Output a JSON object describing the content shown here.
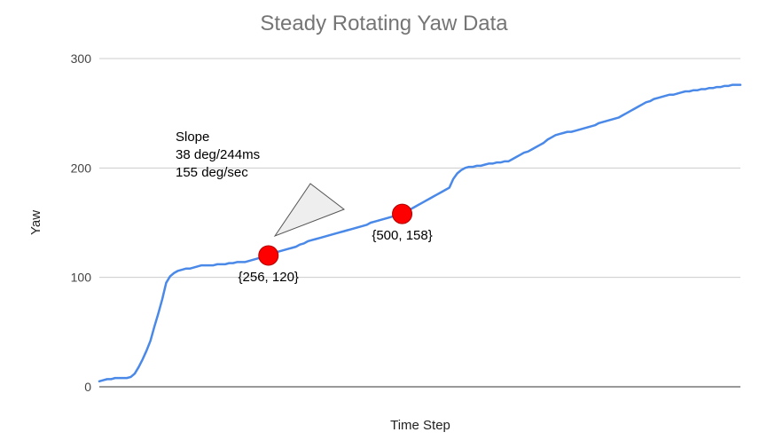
{
  "chart_data": {
    "type": "line",
    "title": "Steady Rotating Yaw Data",
    "xlabel": "Time Step",
    "ylabel": "Yaw",
    "ylim": [
      0,
      300
    ],
    "yticks": [
      0,
      100,
      200,
      300
    ],
    "grid": true,
    "legend": "none",
    "line_color": "#4a89e8",
    "marker_color": "#ff0000",
    "series": [
      {
        "values": [
          5,
          6,
          7,
          7,
          8,
          8,
          8,
          8,
          9,
          12,
          18,
          25,
          33,
          42,
          55,
          67,
          80,
          95,
          101,
          104,
          106,
          107,
          108,
          108,
          109,
          110,
          111,
          111,
          111,
          111,
          112,
          112,
          112,
          113,
          113,
          114,
          114,
          114,
          115,
          116,
          117,
          118,
          119,
          120,
          122,
          123,
          124,
          125,
          126,
          127,
          128,
          130,
          131,
          133,
          134,
          135,
          136,
          137,
          138,
          139,
          140,
          141,
          142,
          143,
          144,
          145,
          146,
          147,
          148,
          150,
          151,
          152,
          153,
          154,
          155,
          156,
          157,
          158,
          160,
          162,
          164,
          166,
          168,
          170,
          172,
          174,
          176,
          178,
          180,
          182,
          190,
          195,
          198,
          200,
          201,
          201,
          202,
          202,
          203,
          204,
          204,
          205,
          205,
          206,
          206,
          208,
          210,
          212,
          214,
          215,
          217,
          219,
          221,
          223,
          226,
          228,
          230,
          231,
          232,
          233,
          233,
          234,
          235,
          236,
          237,
          238,
          239,
          241,
          242,
          243,
          244,
          245,
          246,
          248,
          250,
          252,
          254,
          256,
          258,
          260,
          261,
          263,
          264,
          265,
          266,
          267,
          267,
          268,
          269,
          270,
          270,
          271,
          271,
          272,
          272,
          273,
          273,
          274,
          274,
          275,
          275,
          276,
          276,
          276
        ]
      }
    ],
    "markers": [
      {
        "x": 256,
        "y": 120,
        "label": "{256, 120}"
      },
      {
        "x": 500,
        "y": 158,
        "label": "{500, 158}"
      }
    ],
    "annotation": {
      "lines": [
        "Slope",
        "38 deg/244ms",
        "155 deg/sec"
      ]
    }
  }
}
